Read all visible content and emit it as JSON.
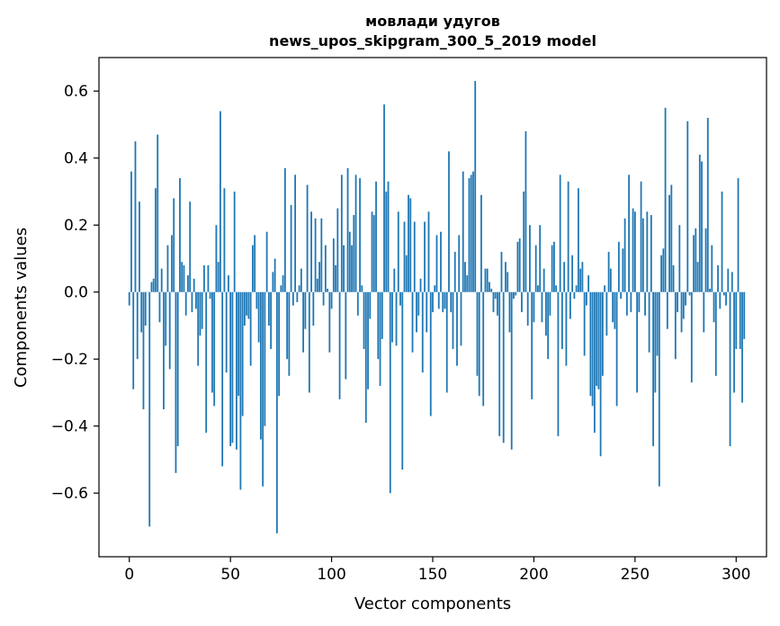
{
  "chart_data": {
    "type": "bar",
    "title_line1": "мовлади удугов",
    "title_line2": "news_upos_skipgram_300_5_2019 model",
    "xlabel": "Vector components",
    "ylabel": "Components values",
    "xlim": [
      -15,
      315
    ],
    "ylim": [
      -0.79,
      0.7
    ],
    "x_ticks": [
      0,
      50,
      100,
      150,
      200,
      250,
      300
    ],
    "y_ticks": [
      -0.6,
      -0.4,
      -0.2,
      0.0,
      0.2,
      0.4,
      0.6
    ],
    "x_tick_labels": [
      "0",
      "50",
      "100",
      "150",
      "200",
      "250",
      "300"
    ],
    "y_tick_labels": [
      "−0.6",
      "−0.4",
      "−0.2",
      "0.0",
      "0.2",
      "0.4",
      "0.6"
    ],
    "bar_color": "#1f77b4",
    "grid": false,
    "values": [
      -0.04,
      0.36,
      -0.29,
      0.45,
      -0.2,
      0.27,
      -0.12,
      -0.35,
      -0.1,
      0.0,
      -0.7,
      0.03,
      0.04,
      0.31,
      0.47,
      -0.09,
      0.07,
      -0.35,
      -0.16,
      0.14,
      -0.23,
      0.17,
      0.28,
      -0.54,
      -0.46,
      0.34,
      0.09,
      0.08,
      -0.07,
      0.05,
      0.27,
      -0.06,
      0.04,
      -0.05,
      -0.22,
      -0.13,
      -0.11,
      0.08,
      -0.42,
      0.08,
      -0.02,
      -0.3,
      -0.34,
      0.2,
      0.09,
      0.54,
      -0.52,
      0.31,
      -0.24,
      0.05,
      -0.46,
      -0.45,
      0.3,
      -0.47,
      -0.31,
      -0.59,
      -0.37,
      -0.1,
      -0.07,
      -0.08,
      -0.22,
      0.14,
      0.17,
      -0.05,
      -0.15,
      -0.44,
      -0.58,
      -0.4,
      0.18,
      -0.1,
      -0.17,
      0.06,
      0.1,
      -0.72,
      -0.31,
      0.02,
      0.05,
      0.37,
      -0.2,
      -0.25,
      0.26,
      -0.04,
      0.35,
      -0.03,
      0.02,
      0.07,
      -0.18,
      -0.11,
      0.32,
      -0.3,
      0.24,
      -0.1,
      0.22,
      0.04,
      0.09,
      0.22,
      -0.04,
      0.14,
      0.01,
      -0.18,
      -0.05,
      0.16,
      0.08,
      0.25,
      -0.32,
      0.35,
      0.14,
      -0.26,
      0.37,
      0.18,
      0.14,
      0.23,
      0.35,
      -0.07,
      0.34,
      0.02,
      -0.17,
      -0.39,
      -0.29,
      -0.08,
      0.24,
      0.23,
      0.33,
      -0.2,
      -0.28,
      -0.14,
      0.56,
      0.3,
      0.33,
      -0.6,
      -0.15,
      0.07,
      -0.16,
      0.24,
      -0.04,
      -0.53,
      0.21,
      0.11,
      0.29,
      0.28,
      -0.18,
      0.21,
      -0.12,
      -0.07,
      0.04,
      -0.24,
      0.21,
      -0.12,
      0.24,
      -0.37,
      -0.06,
      0.02,
      0.17,
      -0.05,
      0.18,
      -0.06,
      -0.05,
      -0.3,
      0.42,
      -0.06,
      -0.17,
      0.12,
      -0.22,
      0.17,
      -0.16,
      0.36,
      0.09,
      0.05,
      0.34,
      0.35,
      0.36,
      0.63,
      -0.25,
      -0.31,
      0.29,
      -0.34,
      0.07,
      0.07,
      0.03,
      0.01,
      -0.06,
      -0.02,
      -0.07,
      -0.43,
      0.12,
      -0.45,
      0.09,
      0.06,
      -0.12,
      -0.47,
      -0.02,
      -0.01,
      0.15,
      0.16,
      -0.06,
      0.3,
      0.48,
      -0.1,
      0.2,
      -0.32,
      -0.09,
      0.14,
      0.02,
      0.2,
      -0.09,
      0.07,
      -0.13,
      -0.2,
      -0.07,
      0.14,
      0.15,
      0.02,
      -0.43,
      0.35,
      -0.17,
      0.09,
      -0.22,
      0.33,
      -0.08,
      0.11,
      -0.02,
      0.02,
      0.31,
      0.07,
      0.09,
      -0.19,
      -0.04,
      0.05,
      -0.31,
      -0.34,
      -0.42,
      -0.28,
      -0.29,
      -0.49,
      -0.25,
      0.02,
      -0.13,
      0.12,
      0.07,
      -0.09,
      -0.11,
      -0.34,
      0.15,
      -0.02,
      0.13,
      0.22,
      -0.07,
      0.35,
      -0.06,
      0.25,
      0.24,
      -0.3,
      -0.06,
      0.33,
      0.22,
      -0.07,
      0.24,
      -0.18,
      0.23,
      -0.46,
      -0.3,
      -0.19,
      -0.58,
      0.11,
      0.13,
      0.55,
      -0.11,
      0.29,
      0.32,
      0.08,
      -0.2,
      -0.06,
      0.2,
      -0.12,
      -0.08,
      -0.04,
      0.51,
      -0.01,
      -0.27,
      0.17,
      0.19,
      0.09,
      0.41,
      0.39,
      -0.12,
      0.19,
      0.52,
      0.01,
      0.14,
      -0.09,
      -0.25,
      0.08,
      -0.05,
      0.3,
      -0.01,
      -0.04,
      0.07,
      -0.46,
      0.06,
      -0.3,
      -0.17,
      0.34,
      -0.17,
      -0.33,
      -0.14
    ]
  }
}
